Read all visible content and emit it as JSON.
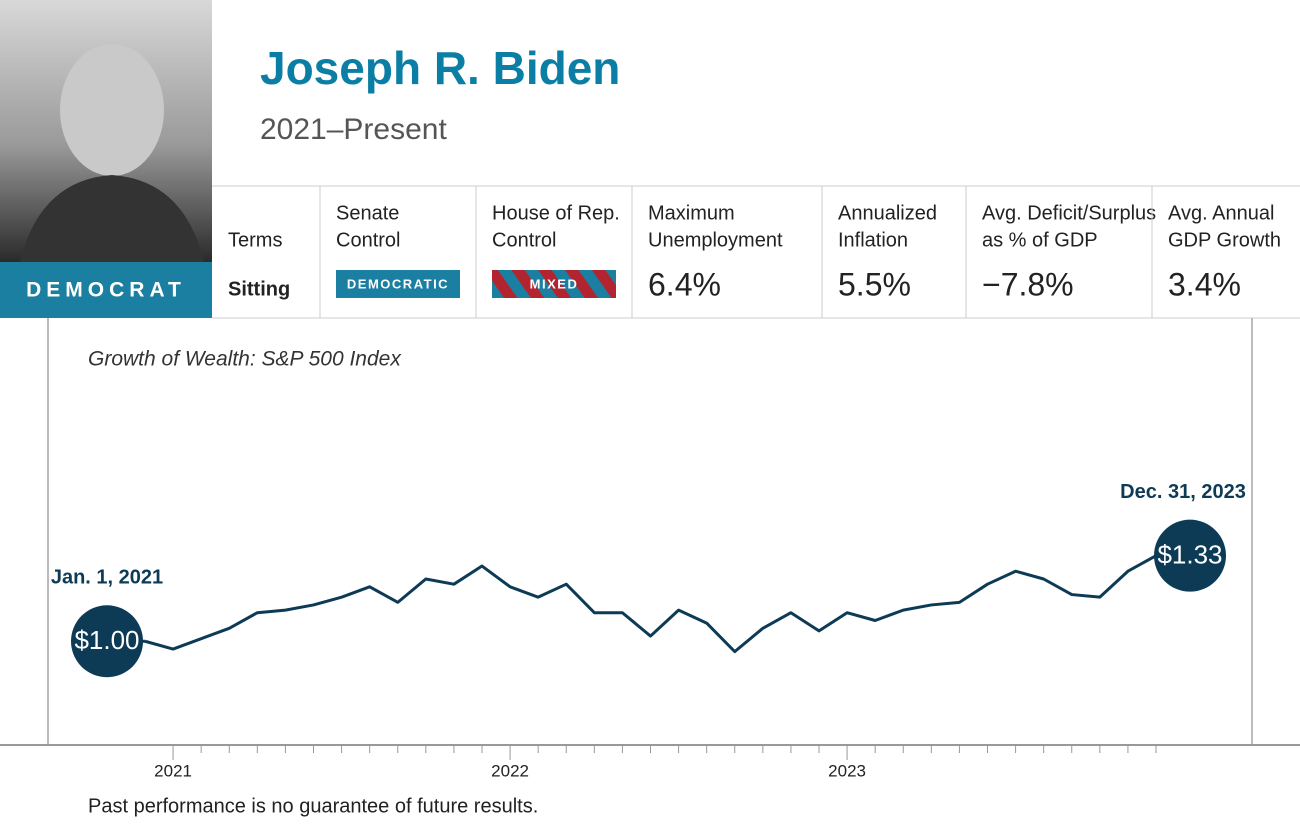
{
  "header": {
    "name": "Joseph R. Biden",
    "term": "2021–Present",
    "party": "DEMOCRAT"
  },
  "stats": [
    {
      "label_lines": [
        "Terms"
      ],
      "value": "Sitting"
    },
    {
      "label_lines": [
        "Senate",
        "Control"
      ],
      "badge": "DEMOCRATIC"
    },
    {
      "label_lines": [
        "House of Rep.",
        "Control"
      ],
      "badge": "MIXED"
    },
    {
      "label_lines": [
        "Maximum",
        "Unemployment"
      ],
      "value": "6.4%"
    },
    {
      "label_lines": [
        "Annualized",
        "Inflation"
      ],
      "value": "5.5%"
    },
    {
      "label_lines": [
        "Avg. Deficit/Surplus",
        "as % of GDP"
      ],
      "value": "−7.8%"
    },
    {
      "label_lines": [
        "Avg. Annual",
        "GDP Growth"
      ],
      "value": "3.4%"
    }
  ],
  "chart_data": {
    "type": "line",
    "title": "Growth of Wealth: S&P 500 Index",
    "categories": [
      null,
      "2021",
      null,
      null,
      null,
      null,
      null,
      null,
      null,
      null,
      null,
      null,
      null,
      "2022",
      null,
      null,
      null,
      null,
      null,
      null,
      null,
      null,
      null,
      null,
      null,
      "2023",
      null,
      null,
      null,
      null,
      null,
      null,
      null,
      null,
      null,
      null,
      null
    ],
    "series": [
      {
        "name": "S&P 500 Index",
        "color": "#0d3b56",
        "values": [
          1.0,
          0.97,
          1.01,
          1.05,
          1.11,
          1.12,
          1.14,
          1.17,
          1.21,
          1.15,
          1.24,
          1.22,
          1.29,
          1.21,
          1.17,
          1.22,
          1.11,
          1.11,
          1.02,
          1.12,
          1.07,
          0.96,
          1.05,
          1.11,
          1.04,
          1.11,
          1.08,
          1.12,
          1.14,
          1.15,
          1.22,
          1.27,
          1.24,
          1.18,
          1.17,
          1.27,
          1.33
        ],
        "value_labels": [
          "$1.00",
          null,
          null,
          null,
          null,
          null,
          null,
          null,
          null,
          null,
          null,
          null,
          null,
          null,
          null,
          null,
          null,
          null,
          null,
          null,
          null,
          null,
          null,
          null,
          null,
          null,
          null,
          null,
          null,
          null,
          null,
          null,
          null,
          null,
          null,
          null,
          "$1.33"
        ]
      }
    ],
    "start_label": "Jan. 1, 2021",
    "end_label": "Dec. 31, 2023",
    "ylim": [
      0.6,
      2.2
    ],
    "footnote": "Past performance is no guarantee of future results."
  }
}
